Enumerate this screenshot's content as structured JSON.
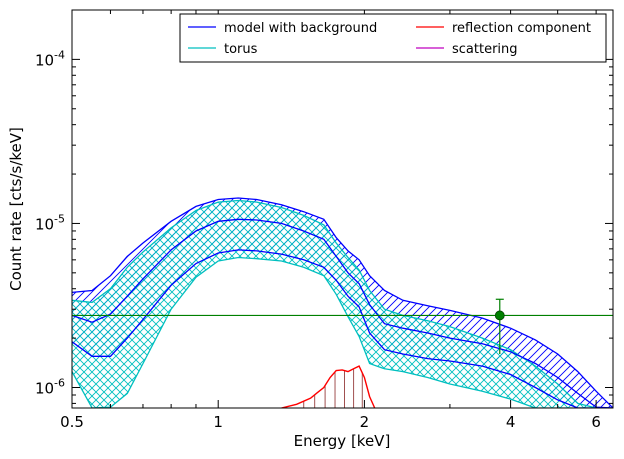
{
  "chart_data": {
    "type": "line",
    "xlabel": "Energy [keV]",
    "ylabel": "Count rate [cts/s/keV]",
    "x_scale": "log",
    "y_scale": "log",
    "xlim": [
      0.5,
      6.5
    ],
    "ylim": [
      7.5e-07,
      0.0002
    ],
    "x_ticks": [
      {
        "value": 0.5,
        "label": "0.5"
      },
      {
        "value": 1,
        "label": "1"
      },
      {
        "value": 2,
        "label": "2"
      },
      {
        "value": 4,
        "label": "4"
      },
      {
        "value": 6,
        "label": "6"
      }
    ],
    "y_ticks": [
      {
        "value": 1e-06,
        "base": "10",
        "exp": "-6"
      },
      {
        "value": 1e-05,
        "base": "10",
        "exp": "-5"
      },
      {
        "value": 0.0001,
        "base": "10",
        "exp": "-4"
      }
    ],
    "legend": {
      "placement": "top-right",
      "entries": [
        {
          "label": "model with background",
          "color": "#0000ff"
        },
        {
          "label": "reflection component",
          "color": "#ff0000"
        },
        {
          "label": "torus",
          "color": "#00bfbf"
        },
        {
          "label": "scattering",
          "color": "#bf00bf"
        }
      ]
    },
    "series": [
      {
        "name": "model with background",
        "color": "#0000ff",
        "hatch": "diagonal",
        "x": [
          0.5,
          0.55,
          0.6,
          0.65,
          0.7,
          0.8,
          0.9,
          1.0,
          1.1,
          1.2,
          1.35,
          1.5,
          1.65,
          1.75,
          1.85,
          1.95,
          2.05,
          2.2,
          2.4,
          2.7,
          3.0,
          3.5,
          4.0,
          4.5,
          5.0,
          5.5,
          6.0,
          6.5
        ],
        "upper": [
          3.8e-06,
          3.9e-06,
          4.8e-06,
          6.3e-06,
          7.6e-06,
          1.03e-05,
          1.27e-05,
          1.4e-05,
          1.43e-05,
          1.4e-05,
          1.3e-05,
          1.18e-05,
          1.06e-05,
          8.2e-06,
          6.8e-06,
          6e-06,
          4.8e-06,
          3.9e-06,
          3.4e-06,
          3.15e-06,
          2.95e-06,
          2.65e-06,
          2.3e-06,
          1.95e-06,
          1.6e-06,
          1.25e-06,
          9.5e-07,
          7.5e-07
        ],
        "middle": [
          2.75e-06,
          2.5e-06,
          2.8e-06,
          3.6e-06,
          4.6e-06,
          6.9e-06,
          9e-06,
          1.03e-05,
          1.06e-05,
          1.05e-05,
          1e-05,
          9e-06,
          8e-06,
          6.3e-06,
          5e-06,
          4.3e-06,
          3.2e-06,
          2.45e-06,
          2.3e-06,
          2.15e-06,
          2e-06,
          1.85e-06,
          1.65e-06,
          1.4e-06,
          1.15e-06,
          9.2e-07,
          7.6e-07,
          7.5e-07
        ],
        "lower": [
          1.9e-06,
          1.55e-06,
          1.55e-06,
          2e-06,
          2.6e-06,
          4.2e-06,
          5.7e-06,
          6.6e-06,
          6.9e-06,
          6.8e-06,
          6.5e-06,
          6e-06,
          5.4e-06,
          4.5e-06,
          3.6e-06,
          3.1e-06,
          2.15e-06,
          1.7e-06,
          1.6e-06,
          1.5e-06,
          1.45e-06,
          1.35e-06,
          1.2e-06,
          1e-06,
          8.4e-07,
          7.5e-07,
          7.5e-07,
          7.5e-07
        ]
      },
      {
        "name": "torus",
        "color": "#00bfbf",
        "hatch": "cross",
        "x": [
          0.5,
          0.55,
          0.6,
          0.65,
          0.7,
          0.8,
          0.9,
          1.0,
          1.1,
          1.2,
          1.35,
          1.5,
          1.65,
          1.75,
          1.85,
          1.95,
          2.05,
          2.2,
          2.4,
          2.7,
          3.0,
          3.5,
          4.0,
          4.5,
          5.0,
          5.5,
          6.0,
          6.5
        ],
        "upper": [
          3.4e-06,
          3.3e-06,
          4e-06,
          5.4e-06,
          6.7e-06,
          9.4e-06,
          1.2e-05,
          1.35e-05,
          1.38e-05,
          1.35e-05,
          1.25e-05,
          1.12e-05,
          9.8e-06,
          7.6e-06,
          6.2e-06,
          5.2e-06,
          3.9e-06,
          3e-06,
          2.75e-06,
          2.55e-06,
          2.35e-06,
          2e-06,
          1.7e-06,
          1.35e-06,
          1.05e-06,
          8e-07,
          7.5e-07,
          7.5e-07
        ],
        "lower": [
          1.25e-06,
          7.5e-07,
          7.6e-07,
          9.2e-07,
          1.4e-06,
          3e-06,
          4.7e-06,
          5.9e-06,
          6.2e-06,
          6.1e-06,
          5.9e-06,
          5.4e-06,
          4.8e-06,
          3.7e-06,
          2.7e-06,
          2.05e-06,
          1.4e-06,
          1.3e-06,
          1.25e-06,
          1.15e-06,
          1.05e-06,
          9.5e-07,
          8.5e-07,
          7.5e-07,
          7.5e-07,
          7.5e-07,
          7.5e-07,
          7.5e-07
        ]
      },
      {
        "name": "reflection component",
        "color": "#ff0000",
        "x": [
          1.35,
          1.45,
          1.55,
          1.6,
          1.65,
          1.7,
          1.75,
          1.8,
          1.85,
          1.9,
          1.95,
          2.0,
          2.05,
          2.1
        ],
        "y": [
          7.5e-07,
          7.9e-07,
          8.6e-07,
          9.3e-07,
          1e-06,
          1.15e-06,
          1.27e-06,
          1.28e-06,
          1.25e-06,
          1.3e-06,
          1.35e-06,
          1.15e-06,
          8.8e-07,
          7.5e-07
        ],
        "drop_lines_x": [
          1.5,
          1.58,
          1.66,
          1.74,
          1.82,
          1.9,
          1.98
        ]
      },
      {
        "name": "background",
        "color": "#008000",
        "y": 2.75e-06
      }
    ],
    "data_points": [
      {
        "x": 3.8,
        "y": 2.75e-06,
        "y_err_low": 1.6e-06,
        "y_err_high": 3.45e-06,
        "color": "#008000"
      }
    ]
  }
}
